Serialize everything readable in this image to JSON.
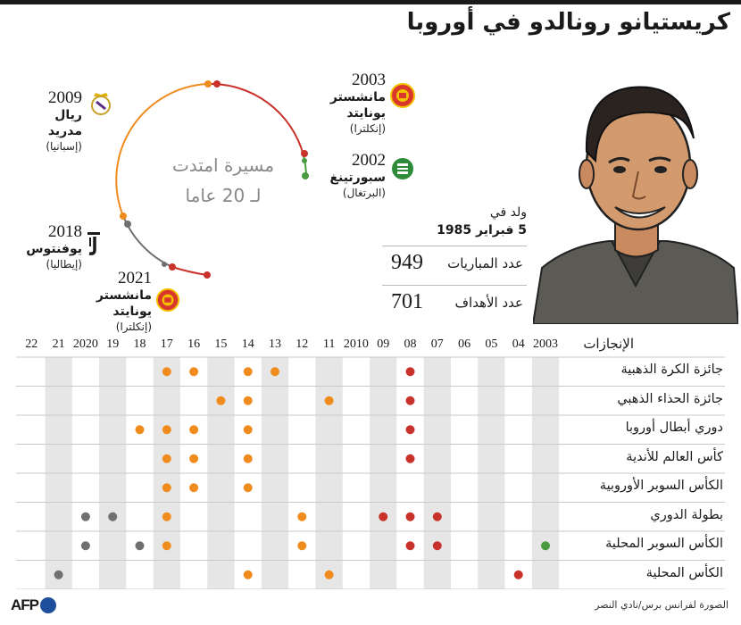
{
  "title": "كريستيانو رونالدو في أوروبا",
  "arc_caption": {
    "line1": "مسيرة امتدت",
    "line2": "لـ 20 عاما"
  },
  "clubs": [
    {
      "id": "sporting",
      "year": "2002",
      "name": "سبورتينغ",
      "country": "(البرتغال)",
      "crest": "sporting-crest-icon"
    },
    {
      "id": "manutd1",
      "year": "2003",
      "name": "مانشستر يونايتد",
      "country": "(إنكلترا)",
      "crest": "man-utd-crest-icon"
    },
    {
      "id": "real",
      "year": "2009",
      "name": "ريال مدريد",
      "country": "(إسبانيا)",
      "crest": "real-madrid-crest-icon"
    },
    {
      "id": "juve",
      "year": "2018",
      "name": "يوفنتوس",
      "country": "(إيطاليا)",
      "crest": "juventus-crest-icon"
    },
    {
      "id": "manutd2",
      "year": "2021",
      "name": "مانشستر يونايتد",
      "country": "(إنكلترا)",
      "crest": "man-utd-crest-icon"
    }
  ],
  "born": {
    "label": "ولد في",
    "date": "5 فبراير 1985"
  },
  "stats": [
    {
      "label": "عدد المباريات",
      "value": "949"
    },
    {
      "label": "عدد الأهداف",
      "value": "701"
    }
  ],
  "colors": {
    "sporting": "#4a9a3f",
    "manutd": "#c8322b",
    "real": "#f08c1e",
    "juve": "#707070"
  },
  "achievements": {
    "header": "الإنجازات",
    "years": [
      "2003",
      "04",
      "05",
      "06",
      "07",
      "08",
      "09",
      "2010",
      "11",
      "12",
      "13",
      "14",
      "15",
      "16",
      "17",
      "18",
      "19",
      "2020",
      "21",
      "22"
    ],
    "rows": [
      {
        "label": "جائزة الكرة الذهبية",
        "wins": [
          {
            "year": "08",
            "club": "manutd"
          },
          {
            "year": "13",
            "club": "real"
          },
          {
            "year": "14",
            "club": "real"
          },
          {
            "year": "16",
            "club": "real"
          },
          {
            "year": "17",
            "club": "real"
          }
        ]
      },
      {
        "label": "جائزة الحذاء الذهبي",
        "wins": [
          {
            "year": "08",
            "club": "manutd"
          },
          {
            "year": "11",
            "club": "real"
          },
          {
            "year": "14",
            "club": "real"
          },
          {
            "year": "15",
            "club": "real"
          }
        ]
      },
      {
        "label": "دوري أبطال أوروبا",
        "wins": [
          {
            "year": "08",
            "club": "manutd"
          },
          {
            "year": "14",
            "club": "real"
          },
          {
            "year": "16",
            "club": "real"
          },
          {
            "year": "17",
            "club": "real"
          },
          {
            "year": "18",
            "club": "real"
          }
        ]
      },
      {
        "label": "كأس العالم للأندية",
        "wins": [
          {
            "year": "08",
            "club": "manutd"
          },
          {
            "year": "14",
            "club": "real"
          },
          {
            "year": "16",
            "club": "real"
          },
          {
            "year": "17",
            "club": "real"
          }
        ]
      },
      {
        "label": "الكأس السوبر الأوروبية",
        "wins": [
          {
            "year": "14",
            "club": "real"
          },
          {
            "year": "16",
            "club": "real"
          },
          {
            "year": "17",
            "club": "real"
          }
        ]
      },
      {
        "label": "بطولة الدوري",
        "wins": [
          {
            "year": "07",
            "club": "manutd"
          },
          {
            "year": "08",
            "club": "manutd"
          },
          {
            "year": "09",
            "club": "manutd"
          },
          {
            "year": "12",
            "club": "real"
          },
          {
            "year": "17",
            "club": "real"
          },
          {
            "year": "19",
            "club": "juve"
          },
          {
            "year": "2020",
            "club": "juve"
          }
        ]
      },
      {
        "label": "الكأس السوبر المحلية",
        "wins": [
          {
            "year": "2003",
            "club": "sporting"
          },
          {
            "year": "07",
            "club": "manutd"
          },
          {
            "year": "08",
            "club": "manutd"
          },
          {
            "year": "12",
            "club": "real"
          },
          {
            "year": "17",
            "club": "real"
          },
          {
            "year": "18",
            "club": "juve"
          },
          {
            "year": "2020",
            "club": "juve"
          }
        ]
      },
      {
        "label": "الكأس المحلية",
        "wins": [
          {
            "year": "04",
            "club": "manutd"
          },
          {
            "year": "11",
            "club": "real"
          },
          {
            "year": "14",
            "club": "real"
          },
          {
            "year": "21",
            "club": "juve"
          }
        ]
      }
    ]
  },
  "footer": {
    "credit": "الصورة لفرانس برس/نادي النصر",
    "logo": "AFP"
  }
}
